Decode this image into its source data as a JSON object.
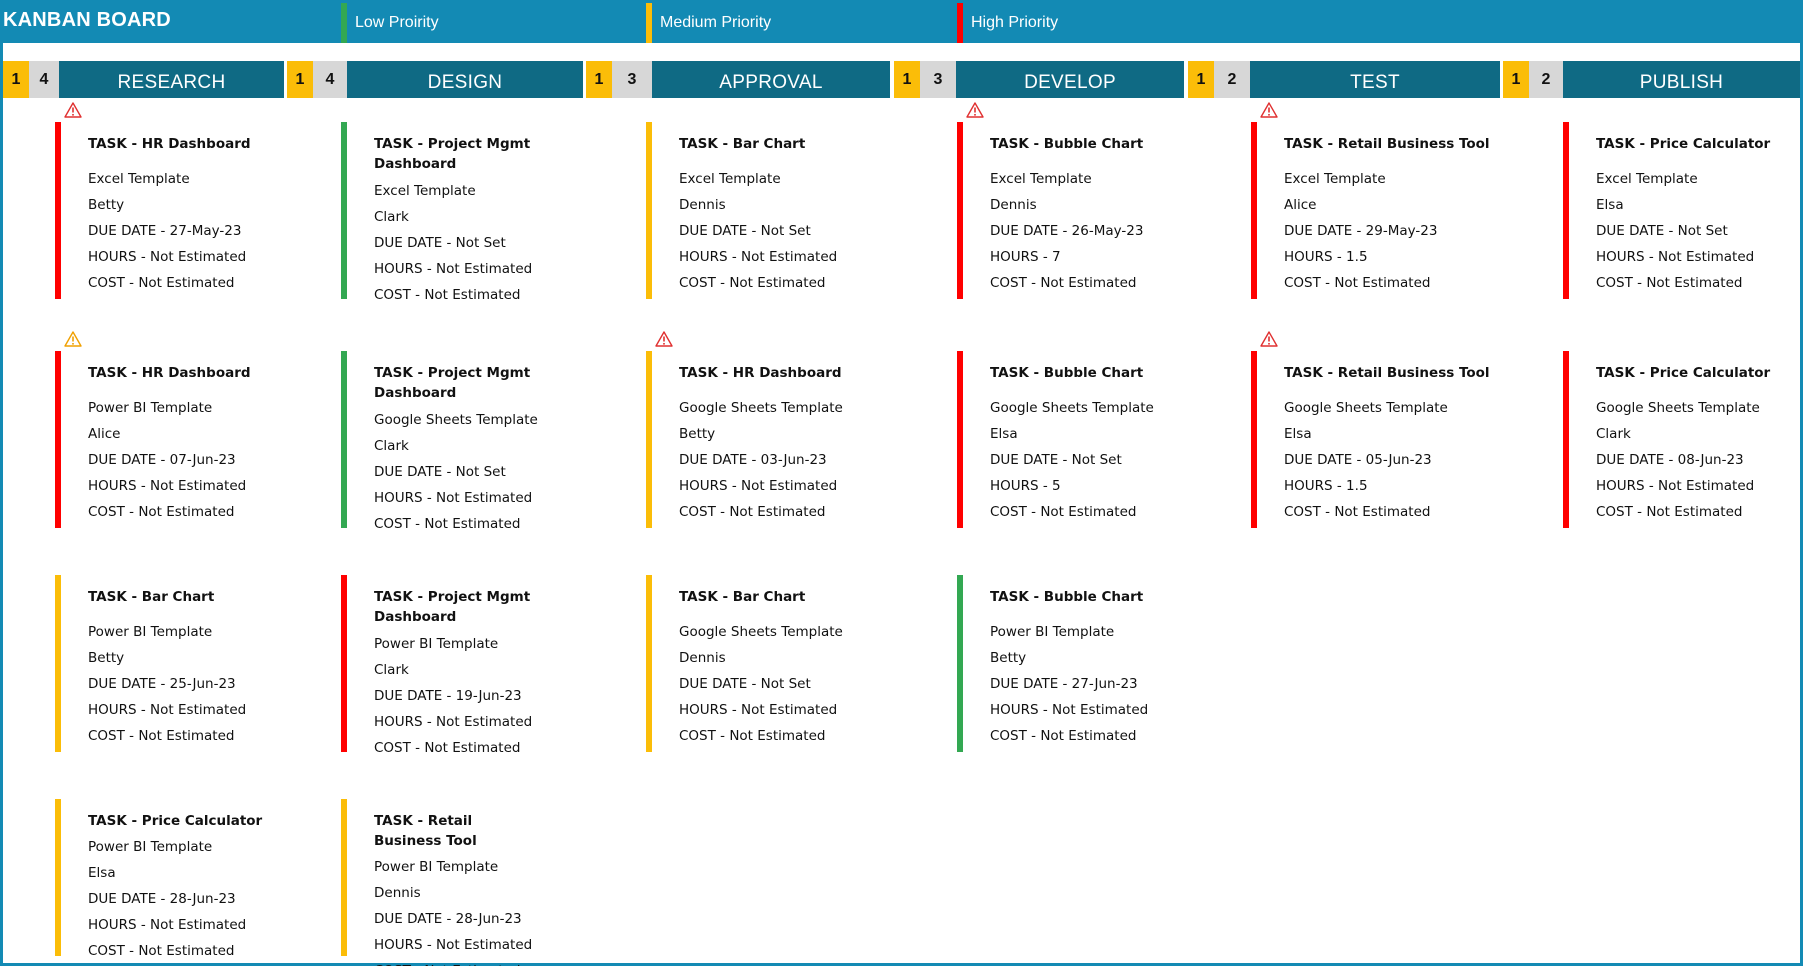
{
  "header": {
    "title": "KANBAN BOARD",
    "legend": [
      {
        "label": "Low Proirity",
        "color": "#33a852"
      },
      {
        "label": "Medium Priority",
        "color": "#fbbd08"
      },
      {
        "label": "High Priority",
        "color": "#ff0000"
      }
    ]
  },
  "columns": [
    {
      "name": "RESEARCH",
      "wip": "1",
      "count": "4"
    },
    {
      "name": "DESIGN",
      "wip": "1",
      "count": "4"
    },
    {
      "name": "APPROVAL",
      "wip": "1",
      "count": "3"
    },
    {
      "name": "DEVELOP",
      "wip": "1",
      "count": "3"
    },
    {
      "name": "TEST",
      "wip": "1",
      "count": "2"
    },
    {
      "name": "PUBLISH",
      "wip": "1",
      "count": "2"
    }
  ],
  "colors": {
    "high": "#ff0000",
    "medium": "#fbbd08",
    "low": "#33a852",
    "warning_high": "#e03030",
    "warning_medium": "#f0a000"
  },
  "cards": [
    {
      "col": 0,
      "row": 0,
      "priority": "high",
      "warning": "high",
      "title": "TASK - HR Dashboard",
      "type": "Excel Template",
      "assignee": "Betty",
      "due": "DUE DATE - 27-May-23",
      "hours": "HOURS - Not Estimated",
      "cost": "COST - Not Estimated"
    },
    {
      "col": 1,
      "row": 0,
      "priority": "low",
      "warning": "",
      "title": "TASK - Project Mgmt Dashboard",
      "type": "Excel Template",
      "assignee": "Clark",
      "due": "DUE DATE - Not Set",
      "hours": "HOURS - Not Estimated",
      "cost": "COST - Not Estimated"
    },
    {
      "col": 2,
      "row": 0,
      "priority": "medium",
      "warning": "",
      "title": "TASK - Bar Chart",
      "type": "Excel Template",
      "assignee": "Dennis",
      "due": "DUE DATE - Not Set",
      "hours": "HOURS - Not Estimated",
      "cost": "COST - Not Estimated"
    },
    {
      "col": 3,
      "row": 0,
      "priority": "high",
      "warning": "high",
      "title": "TASK - Bubble Chart",
      "type": "Excel Template",
      "assignee": "Dennis",
      "due": "DUE DATE - 26-May-23",
      "hours": "HOURS - 7",
      "cost": "COST - Not Estimated"
    },
    {
      "col": 4,
      "row": 0,
      "priority": "high",
      "warning": "high",
      "title": "TASK - Retail Business Tool",
      "type": "Excel Template",
      "assignee": "Alice",
      "due": "DUE DATE - 29-May-23",
      "hours": "HOURS - 1.5",
      "cost": "COST - Not Estimated"
    },
    {
      "col": 5,
      "row": 0,
      "priority": "high",
      "warning": "",
      "title": "TASK - Price Calculator",
      "type": "Excel Template",
      "assignee": "Elsa",
      "due": "DUE DATE - Not Set",
      "hours": "HOURS - Not Estimated",
      "cost": "COST - Not Estimated"
    },
    {
      "col": 0,
      "row": 1,
      "priority": "high",
      "warning": "medium",
      "title": "TASK - HR Dashboard",
      "type": "Power BI Template",
      "assignee": "Alice",
      "due": "DUE DATE - 07-Jun-23",
      "hours": "HOURS - Not Estimated",
      "cost": "COST - Not Estimated"
    },
    {
      "col": 1,
      "row": 1,
      "priority": "low",
      "warning": "",
      "title": "TASK - Project Mgmt Dashboard",
      "type": "Google Sheets Template",
      "assignee": "Clark",
      "due": "DUE DATE - Not Set",
      "hours": "HOURS - Not Estimated",
      "cost": "COST - Not Estimated"
    },
    {
      "col": 2,
      "row": 1,
      "priority": "medium",
      "warning": "high",
      "title": "TASK - HR Dashboard",
      "type": "Google Sheets Template",
      "assignee": "Betty",
      "due": "DUE DATE - 03-Jun-23",
      "hours": "HOURS - Not Estimated",
      "cost": "COST - Not Estimated"
    },
    {
      "col": 3,
      "row": 1,
      "priority": "high",
      "warning": "",
      "title": "TASK - Bubble Chart",
      "type": "Google Sheets Template",
      "assignee": "Elsa",
      "due": "DUE DATE - Not Set",
      "hours": "HOURS - 5",
      "cost": "COST - Not Estimated"
    },
    {
      "col": 4,
      "row": 1,
      "priority": "high",
      "warning": "high",
      "title": "TASK - Retail Business Tool",
      "type": "Google Sheets Template",
      "assignee": "Elsa",
      "due": "DUE DATE - 05-Jun-23",
      "hours": "HOURS - 1.5",
      "cost": "COST - Not Estimated"
    },
    {
      "col": 5,
      "row": 1,
      "priority": "high",
      "warning": "",
      "title": "TASK - Price Calculator",
      "type": "Google Sheets Template",
      "assignee": "Clark",
      "due": "DUE DATE - 08-Jun-23",
      "hours": "HOURS - Not Estimated",
      "cost": "COST - Not Estimated"
    },
    {
      "col": 0,
      "row": 2,
      "priority": "medium",
      "warning": "",
      "title": "TASK - Bar Chart",
      "type": "Power BI Template",
      "assignee": "Betty",
      "due": "DUE DATE - 25-Jun-23",
      "hours": "HOURS - Not Estimated",
      "cost": "COST - Not Estimated"
    },
    {
      "col": 1,
      "row": 2,
      "priority": "high",
      "warning": "",
      "title": "TASK - Project Mgmt Dashboard",
      "type": "Power BI Template",
      "assignee": "Clark",
      "due": "DUE DATE - 19-Jun-23",
      "hours": "HOURS - Not Estimated",
      "cost": "COST - Not Estimated"
    },
    {
      "col": 2,
      "row": 2,
      "priority": "medium",
      "warning": "",
      "title": "TASK - Bar Chart",
      "type": "Google Sheets Template",
      "assignee": "Dennis",
      "due": "DUE DATE - Not Set",
      "hours": "HOURS - Not Estimated",
      "cost": "COST - Not Estimated"
    },
    {
      "col": 3,
      "row": 2,
      "priority": "low",
      "warning": "",
      "title": "TASK - Bubble Chart",
      "type": "Power BI Template",
      "assignee": "Betty",
      "due": "DUE DATE - 27-Jun-23",
      "hours": "HOURS - Not Estimated",
      "cost": "COST - Not Estimated"
    },
    {
      "col": 0,
      "row": 3,
      "priority": "medium",
      "warning": "",
      "title": "TASK - Price Calculator",
      "type": "Power BI Template",
      "assignee": "Elsa",
      "due": "DUE DATE - 28-Jun-23",
      "hours": "HOURS - Not Estimated",
      "cost": "COST - Not Estimated"
    },
    {
      "col": 1,
      "row": 3,
      "priority": "medium",
      "warning": "",
      "title": "TASK - Retail Business Tool",
      "type": "Power BI Template",
      "assignee": "Dennis",
      "due": "DUE DATE - 28-Jun-23",
      "hours": "HOURS - Not Estimated",
      "cost": "COST - Not Estimated"
    }
  ]
}
